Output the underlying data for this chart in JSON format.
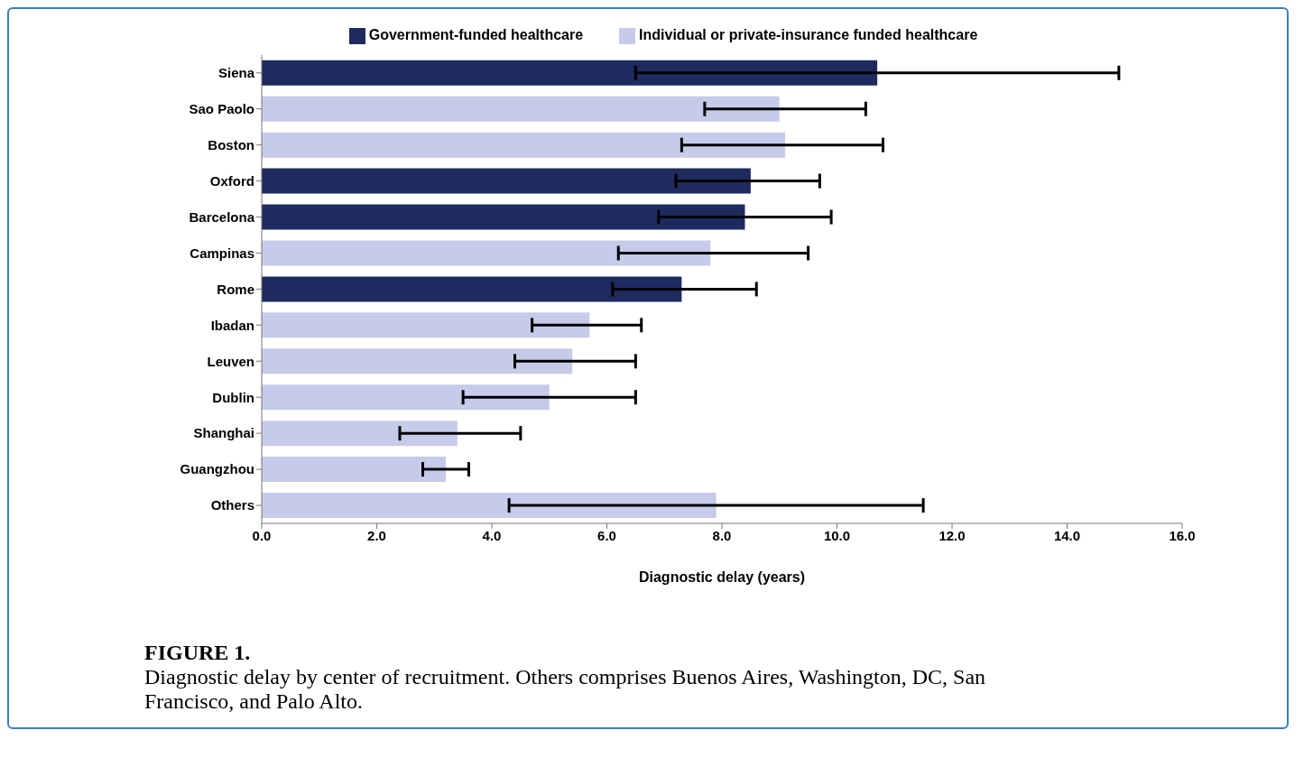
{
  "chart_data": {
    "type": "bar",
    "orientation": "horizontal",
    "stacked": true,
    "xlabel": "Diagnostic delay (years)",
    "categories": [
      "Siena",
      "Sao Paolo",
      "Boston",
      "Oxford",
      "Barcelona",
      "Campinas",
      "Rome",
      "Ibadan",
      "Leuven",
      "Dublin",
      "Shanghai",
      "Guangzhou",
      "Others"
    ],
    "series": [
      {
        "name": "Government-funded healthcare",
        "color": "#1f2a5e",
        "values": [
          10.7,
          null,
          null,
          8.5,
          8.4,
          null,
          7.3,
          null,
          null,
          null,
          null,
          null,
          null
        ],
        "errors": [
          [
            6.5,
            14.9
          ],
          null,
          null,
          [
            7.2,
            9.7
          ],
          [
            6.9,
            9.9
          ],
          null,
          [
            6.1,
            8.6
          ],
          null,
          null,
          null,
          null,
          null,
          null
        ]
      },
      {
        "name": "Individual or private-insurance funded healthcare",
        "color": "#c5cbe8",
        "values": [
          null,
          9.0,
          9.1,
          null,
          null,
          7.8,
          null,
          5.7,
          5.4,
          5.0,
          3.4,
          3.2,
          7.9
        ],
        "errors": [
          null,
          [
            7.7,
            10.5
          ],
          [
            7.3,
            10.8
          ],
          null,
          null,
          [
            6.2,
            9.5
          ],
          null,
          [
            4.7,
            6.6
          ],
          [
            4.4,
            6.5
          ],
          [
            3.5,
            6.5
          ],
          [
            2.4,
            4.5
          ],
          [
            2.8,
            3.6
          ],
          [
            4.3,
            11.5
          ]
        ]
      }
    ],
    "xlim": [
      0,
      16
    ],
    "xticks": [
      {
        "value": 0,
        "label": "0.0"
      },
      {
        "value": 2,
        "label": "2.0"
      },
      {
        "value": 4,
        "label": "4.0"
      },
      {
        "value": 6,
        "label": "6.0"
      },
      {
        "value": 8,
        "label": "8.0"
      },
      {
        "value": 10,
        "label": "10.0"
      },
      {
        "value": 12,
        "label": "12.0"
      },
      {
        "value": 14,
        "label": "14.0"
      },
      {
        "value": 16,
        "label": "16.0"
      }
    ],
    "grid": false,
    "legend": "top",
    "annotations": [
      "FIGURE 1.",
      "Diagnostic delay by center of recruitment. Others comprises Buenos Aires, Washington, DC, San Francisco, and Palo Alto."
    ]
  }
}
